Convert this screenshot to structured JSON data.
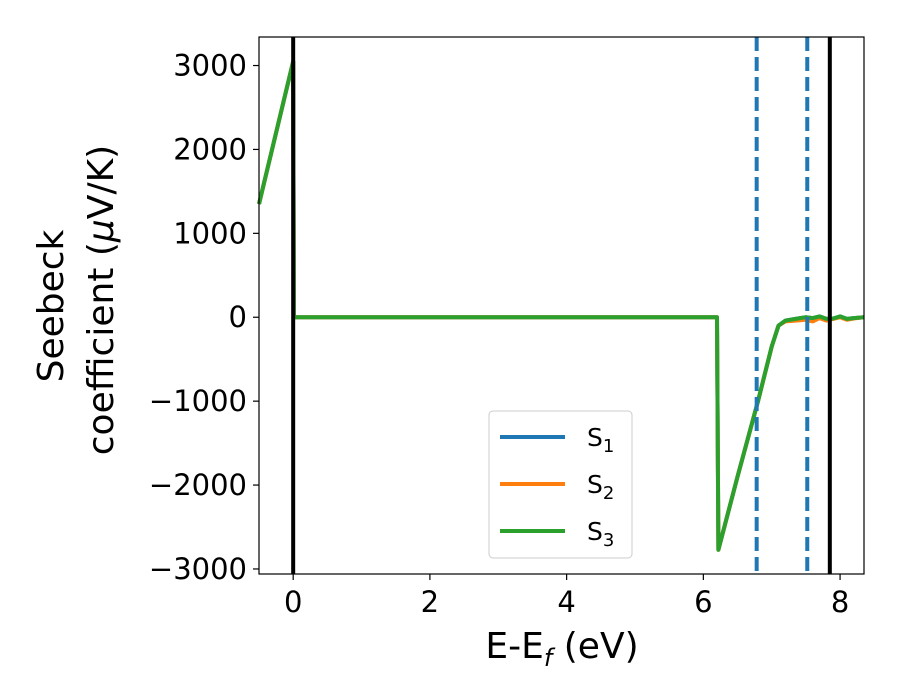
{
  "chart_data": {
    "type": "line",
    "xlabel": "E-E",
    "xlabel_sub": "f",
    "xlabel_unit": " (eV)",
    "ylabel_line1": "Seebeck",
    "ylabel_line2": "coefficient  (",
    "ylabel_mu": "μ",
    "ylabel_unit": "V/K)",
    "xlim": [
      -0.5,
      8.35
    ],
    "ylim": [
      -3060,
      3340
    ],
    "xticks": [
      0,
      2,
      4,
      6,
      8
    ],
    "yticks": [
      -3000,
      -2000,
      -1000,
      0,
      1000,
      2000,
      3000
    ],
    "tick_labels_x": [
      "0",
      "2",
      "4",
      "6",
      "8"
    ],
    "tick_labels_y": [
      "−3000",
      "−2000",
      "−1000",
      "0",
      "1000",
      "2000",
      "3000"
    ],
    "vlines_solid": [
      0.0,
      7.85
    ],
    "vlines_dashed": [
      6.78,
      7.52
    ],
    "legend_position": "lower-center",
    "grid": false,
    "series": [
      {
        "name": "S",
        "sub": "1",
        "color": "#1f77b4",
        "x": [
          -0.5,
          0.0,
          0.01,
          6.2,
          6.22,
          6.5,
          6.8,
          7.0,
          7.1,
          7.2,
          7.35,
          7.5,
          7.6,
          7.7,
          7.8,
          7.9,
          8.0,
          8.1,
          8.2,
          8.35
        ],
        "y": [
          1350,
          3050,
          0,
          0,
          -2770,
          -1900,
          -1000,
          -350,
          -100,
          -40,
          -20,
          0,
          -10,
          10,
          -20,
          -15,
          10,
          -20,
          -10,
          0
        ]
      },
      {
        "name": "S",
        "sub": "2",
        "color": "#ff7f0e",
        "x": [
          -0.5,
          0.0,
          0.01,
          6.2,
          6.22,
          6.5,
          6.8,
          7.0,
          7.1,
          7.2,
          7.35,
          7.5,
          7.6,
          7.7,
          7.8,
          7.9,
          8.0,
          8.1,
          8.2,
          8.35
        ],
        "y": [
          1350,
          3050,
          0,
          0,
          -2770,
          -1900,
          -1000,
          -350,
          -100,
          -50,
          -40,
          -30,
          -50,
          -10,
          -40,
          -20,
          0,
          -30,
          -15,
          0
        ]
      },
      {
        "name": "S",
        "sub": "3",
        "color": "#2ca02c",
        "x": [
          -0.5,
          0.0,
          0.01,
          6.2,
          6.22,
          6.5,
          6.8,
          7.0,
          7.1,
          7.2,
          7.35,
          7.5,
          7.6,
          7.7,
          7.8,
          7.9,
          8.0,
          8.1,
          8.2,
          8.35
        ],
        "y": [
          1350,
          3050,
          0,
          0,
          -2770,
          -1900,
          -1000,
          -350,
          -100,
          -40,
          -20,
          0,
          -10,
          10,
          -20,
          -15,
          10,
          -20,
          -10,
          0
        ]
      }
    ]
  }
}
